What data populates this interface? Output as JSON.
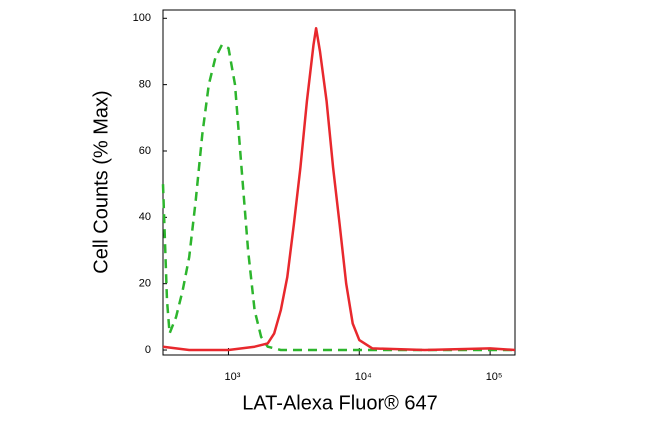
{
  "chart_data": {
    "type": "line",
    "x_label": "LAT-Alexa Fluor® 647",
    "y_label": "Cell Counts (% Max)",
    "xscale": "log",
    "xlim": [
      316,
      155000
    ],
    "ylim": [
      -1.5,
      102.5
    ],
    "xticks": [
      {
        "value": 1000,
        "label": "10³"
      },
      {
        "value": 10000,
        "label": "10⁴"
      },
      {
        "value": 100000,
        "label": "10⁵"
      }
    ],
    "yticks": [
      0,
      20,
      40,
      60,
      80,
      100
    ],
    "series": [
      {
        "color": "#2db52d",
        "dash": true,
        "x": [
          316,
          339,
          355,
          398,
          447,
          501,
          562,
          631,
          708,
          794,
          891,
          1000,
          1122,
          1259,
          1413,
          1585,
          1778,
          1995,
          2512,
          10000,
          154882
        ],
        "values": [
          50,
          15,
          5,
          10,
          18,
          28,
          45,
          65,
          80,
          88,
          92,
          91,
          80,
          55,
          30,
          12,
          4,
          1,
          0,
          0,
          0
        ]
      },
      {
        "color": "#e8282d",
        "dash": false,
        "x": [
          316,
          501,
          1000,
          1585,
          1995,
          2239,
          2512,
          2818,
          3162,
          3548,
          3981,
          4467,
          4677,
          5012,
          5623,
          6310,
          7079,
          7943,
          8913,
          10000,
          12589,
          31623,
          100000,
          154882
        ],
        "values": [
          1,
          0,
          0,
          1,
          2,
          5,
          12,
          22,
          38,
          55,
          75,
          92,
          97,
          90,
          75,
          55,
          38,
          20,
          8,
          3,
          0.5,
          0,
          0.5,
          0
        ]
      }
    ]
  }
}
